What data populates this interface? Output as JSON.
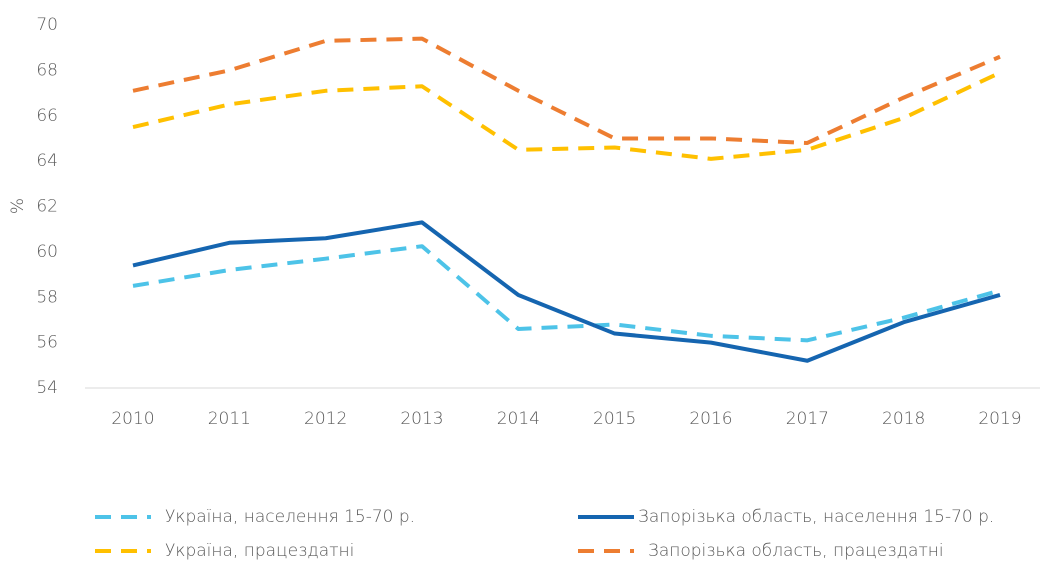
{
  "chart_data": {
    "type": "line",
    "y_label": "%",
    "categories": [
      "2010",
      "2011",
      "2012",
      "2013",
      "2014",
      "2015",
      "2016",
      "2017",
      "2018",
      "2019"
    ],
    "series": [
      {
        "name": "Україна, населення 15-70 р.",
        "color": "#4dc3e8",
        "dashed": true,
        "values": [
          58.5,
          59.2,
          59.7,
          60.25,
          56.6,
          56.8,
          56.3,
          56.1,
          57.1,
          58.3
        ]
      },
      {
        "name": "Запорізька область, населення 15-70 р.",
        "color": "#1565b0",
        "dashed": false,
        "values": [
          59.4,
          60.4,
          60.6,
          61.3,
          58.1,
          56.4,
          56.0,
          55.2,
          56.9,
          58.1
        ]
      },
      {
        "name": "Україна, працездатні",
        "color": "#ffc000",
        "dashed": true,
        "values": [
          65.5,
          66.5,
          67.1,
          67.3,
          64.5,
          64.6,
          64.1,
          64.5,
          65.9,
          67.9
        ]
      },
      {
        "name": "Запорізька область, працездатні",
        "color": "#ed7d31",
        "dashed": true,
        "values": [
          67.1,
          68.0,
          69.3,
          69.4,
          67.1,
          65.0,
          65.0,
          64.8,
          66.8,
          68.6
        ]
      }
    ],
    "ylim": [
      54,
      70
    ],
    "yticks": [
      54,
      56,
      58,
      60,
      62,
      64,
      66,
      68,
      70
    ],
    "grid": false
  }
}
